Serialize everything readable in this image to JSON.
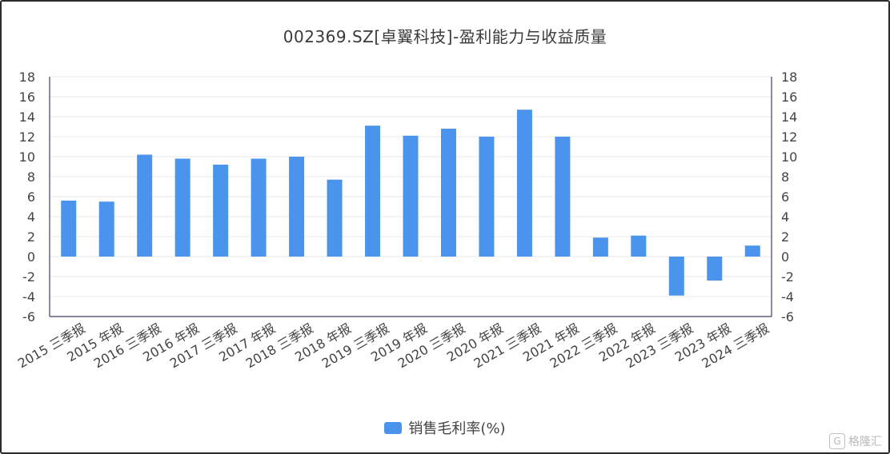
{
  "chart_data": {
    "type": "bar",
    "title": "002369.SZ[卓翼科技]-盈利能力与收益质量",
    "categories": [
      "2015 三季报",
      "2015 年报",
      "2016 三季报",
      "2016 年报",
      "2017 三季报",
      "2017 年报",
      "2018 三季报",
      "2018 年报",
      "2019 三季报",
      "2019 年报",
      "2020 三季报",
      "2020 年报",
      "2021 三季报",
      "2021 年报",
      "2022 三季报",
      "2022 年报",
      "2023 三季报",
      "2023 年报",
      "2024 三季报"
    ],
    "series": [
      {
        "name": "销售毛利率(%)",
        "values": [
          5.6,
          5.5,
          10.2,
          9.8,
          9.2,
          9.8,
          10.0,
          7.7,
          13.1,
          12.1,
          12.8,
          12.0,
          14.7,
          12.0,
          1.9,
          2.1,
          -3.9,
          -2.4,
          1.1
        ]
      }
    ],
    "ylim": [
      -6,
      18
    ],
    "yticks": [
      18,
      16,
      14,
      12,
      10,
      8,
      6,
      4,
      2,
      0,
      -2,
      -4,
      -6
    ],
    "grid": true,
    "legend_position": "bottom",
    "colors": {
      "bar": "#4a94ee",
      "axis": "#3d3d66",
      "grid": "#e8e8e8",
      "tick_text": "#444444"
    }
  },
  "watermark": {
    "logo_icon": "gelonghui-logo-icon",
    "logo_glyph": "G",
    "text": "格隆汇"
  }
}
